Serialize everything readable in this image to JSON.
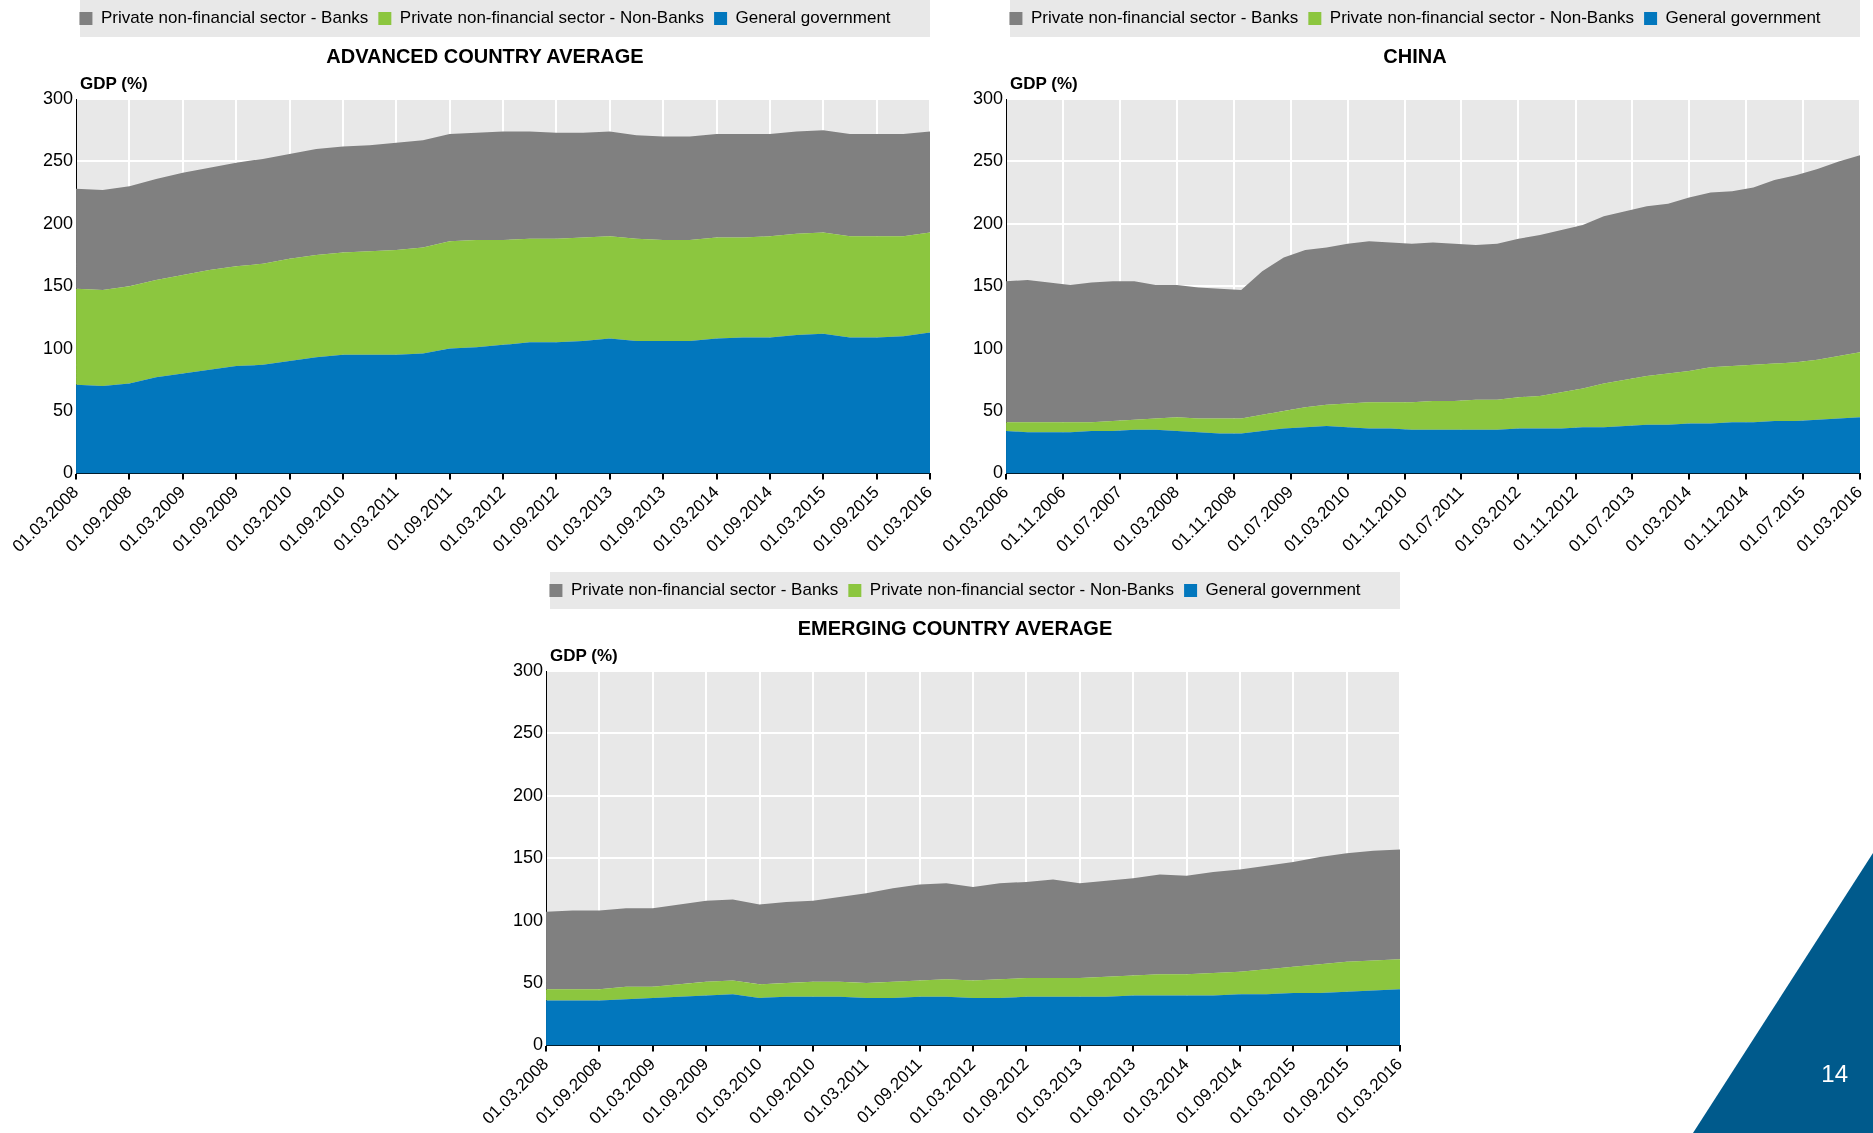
{
  "chart_data": [
    {
      "type": "area",
      "title": "ADVANCED COUNTRY AVERAGE",
      "ylabel": "GDP (%)",
      "stacked": true,
      "grid": true,
      "legend": "top",
      "ylim": [
        0,
        300
      ],
      "yticks": [
        0,
        50,
        100,
        150,
        200,
        250,
        300
      ],
      "categories": [
        "01.03.2008",
        null,
        "01.09.2008",
        null,
        "01.03.2009",
        null,
        "01.09.2009",
        null,
        "01.03.2010",
        null,
        "01.09.2010",
        null,
        "01.03.2011",
        null,
        "01.09.2011",
        null,
        "01.03.2012",
        null,
        "01.09.2012",
        null,
        "01.03.2013",
        null,
        "01.09.2013",
        null,
        "01.03.2014",
        null,
        "01.09.2014",
        null,
        "01.03.2015",
        null,
        "01.09.2015",
        null,
        "01.03.2016"
      ],
      "series": [
        {
          "name": "General government",
          "color": "#0277bd",
          "values": [
            71,
            70,
            72,
            77,
            80,
            83,
            86,
            87,
            90,
            93,
            95,
            95,
            95,
            96,
            100,
            101,
            103,
            105,
            105,
            106,
            108,
            106,
            106,
            106,
            108,
            109,
            109,
            111,
            112,
            109,
            109,
            110,
            113
          ]
        },
        {
          "name": "Private non-financial sector - Non-Banks",
          "color": "#8cc63f",
          "values": [
            77,
            77,
            78,
            78,
            79,
            80,
            80,
            81,
            82,
            82,
            82,
            83,
            84,
            85,
            86,
            86,
            84,
            83,
            83,
            83,
            82,
            82,
            81,
            81,
            81,
            80,
            81,
            81,
            81,
            81,
            81,
            80,
            80
          ]
        },
        {
          "name": "Private non-financial sector - Banks",
          "color": "#808080",
          "values": [
            80,
            80,
            80,
            81,
            82,
            82,
            83,
            84,
            84,
            85,
            85,
            85,
            86,
            86,
            86,
            86,
            87,
            86,
            85,
            84,
            84,
            83,
            83,
            83,
            83,
            83,
            82,
            82,
            82,
            82,
            82,
            82,
            81
          ]
        }
      ]
    },
    {
      "type": "area",
      "title": "CHINA",
      "ylabel": "GDP (%)",
      "stacked": true,
      "grid": true,
      "legend": "top",
      "ylim": [
        0,
        300
      ],
      "yticks": [
        0,
        50,
        100,
        150,
        200,
        250,
        300
      ],
      "xlim": [
        "2006-03",
        "2016-03"
      ],
      "xticks": [
        {
          "value": "2006-03",
          "label": "01.03.2006"
        },
        {
          "value": "2006-11",
          "label": "01.11.2006"
        },
        {
          "value": "2007-07",
          "label": "01.07.2007"
        },
        {
          "value": "2008-03",
          "label": "01.03.2008"
        },
        {
          "value": "2008-11",
          "label": "01.11.2008"
        },
        {
          "value": "2009-07",
          "label": "01.07.2009"
        },
        {
          "value": "2010-03",
          "label": "01.03.2010"
        },
        {
          "value": "2010-11",
          "label": "01.11.2010"
        },
        {
          "value": "2011-07",
          "label": "01.07.2011"
        },
        {
          "value": "2012-03",
          "label": "01.03.2012"
        },
        {
          "value": "2012-11",
          "label": "01.11.2012"
        },
        {
          "value": "2013-07",
          "label": "01.07.2013"
        },
        {
          "value": "2014-03",
          "label": "01.03.2014"
        },
        {
          "value": "2014-11",
          "label": "01.11.2014"
        },
        {
          "value": "2015-07",
          "label": "01.07.2015"
        },
        {
          "value": "2016-03",
          "label": "01.03.2016"
        }
      ],
      "x": [
        "2006-03",
        "2006-06",
        "2006-09",
        "2006-12",
        "2007-03",
        "2007-06",
        "2007-09",
        "2007-12",
        "2008-03",
        "2008-06",
        "2008-09",
        "2008-12",
        "2009-03",
        "2009-06",
        "2009-09",
        "2009-12",
        "2010-03",
        "2010-06",
        "2010-09",
        "2010-12",
        "2011-03",
        "2011-06",
        "2011-09",
        "2011-12",
        "2012-03",
        "2012-06",
        "2012-09",
        "2012-12",
        "2013-03",
        "2013-06",
        "2013-09",
        "2013-12",
        "2014-03",
        "2014-06",
        "2014-09",
        "2014-12",
        "2015-03",
        "2015-06",
        "2015-09",
        "2015-12",
        "2016-03"
      ],
      "series": [
        {
          "name": "General government",
          "color": "#0277bd",
          "values": [
            34,
            33,
            33,
            33,
            34,
            34,
            35,
            35,
            34,
            33,
            32,
            32,
            34,
            36,
            37,
            38,
            37,
            36,
            36,
            35,
            35,
            35,
            35,
            35,
            36,
            36,
            36,
            37,
            37,
            38,
            39,
            39,
            40,
            40,
            41,
            41,
            42,
            42,
            43,
            44,
            45
          ]
        },
        {
          "name": "Private non-financial sector - Non-Banks",
          "color": "#8cc63f",
          "values": [
            7,
            8,
            8,
            8,
            7,
            8,
            8,
            9,
            11,
            11,
            12,
            12,
            13,
            14,
            16,
            17,
            19,
            21,
            21,
            22,
            23,
            23,
            24,
            24,
            25,
            26,
            29,
            31,
            35,
            37,
            39,
            41,
            42,
            45,
            45,
            46,
            46,
            47,
            48,
            50,
            52
          ]
        },
        {
          "name": "Private non-financial sector - Banks",
          "color": "#808080",
          "values": [
            113,
            114,
            112,
            110,
            112,
            112,
            111,
            107,
            106,
            105,
            104,
            103,
            115,
            123,
            126,
            126,
            128,
            129,
            128,
            127,
            127,
            126,
            124,
            125,
            127,
            129,
            130,
            131,
            134,
            135,
            136,
            136,
            139,
            140,
            140,
            142,
            147,
            150,
            153,
            156,
            158
          ]
        }
      ]
    },
    {
      "type": "area",
      "title": "EMERGING COUNTRY AVERAGE",
      "ylabel": "GDP (%)",
      "stacked": true,
      "grid": true,
      "legend": "top",
      "ylim": [
        0,
        300
      ],
      "yticks": [
        0,
        50,
        100,
        150,
        200,
        250,
        300
      ],
      "annotations": [
        "14"
      ],
      "categories": [
        "01.03.2008",
        null,
        "01.09.2008",
        null,
        "01.03.2009",
        null,
        "01.09.2009",
        null,
        "01.03.2010",
        null,
        "01.09.2010",
        null,
        "01.03.2011",
        null,
        "01.09.2011",
        null,
        "01.03.2012",
        null,
        "01.09.2012",
        null,
        "01.03.2013",
        null,
        "01.09.2013",
        null,
        "01.03.2014",
        null,
        "01.09.2014",
        null,
        "01.03.2015",
        null,
        "01.09.2015",
        null,
        "01.03.2016"
      ],
      "series": [
        {
          "name": "General government",
          "color": "#0277bd",
          "values": [
            36,
            36,
            36,
            37,
            38,
            39,
            40,
            41,
            38,
            39,
            39,
            39,
            38,
            38,
            39,
            39,
            38,
            38,
            39,
            39,
            39,
            39,
            40,
            40,
            40,
            40,
            41,
            41,
            42,
            42,
            43,
            44,
            45
          ]
        },
        {
          "name": "Private non-financial sector - Non-Banks",
          "color": "#8cc63f",
          "values": [
            9,
            9,
            9,
            10,
            9,
            10,
            11,
            11,
            11,
            11,
            12,
            12,
            12,
            13,
            13,
            14,
            14,
            15,
            15,
            15,
            15,
            16,
            16,
            17,
            17,
            18,
            18,
            20,
            21,
            23,
            24,
            24,
            24
          ]
        },
        {
          "name": "Private non-financial sector - Banks",
          "color": "#808080",
          "values": [
            62,
            63,
            63,
            63,
            63,
            64,
            65,
            65,
            64,
            65,
            65,
            68,
            72,
            75,
            77,
            77,
            75,
            77,
            77,
            79,
            76,
            77,
            78,
            80,
            79,
            81,
            82,
            83,
            84,
            86,
            87,
            88,
            88
          ]
        }
      ]
    }
  ]
}
